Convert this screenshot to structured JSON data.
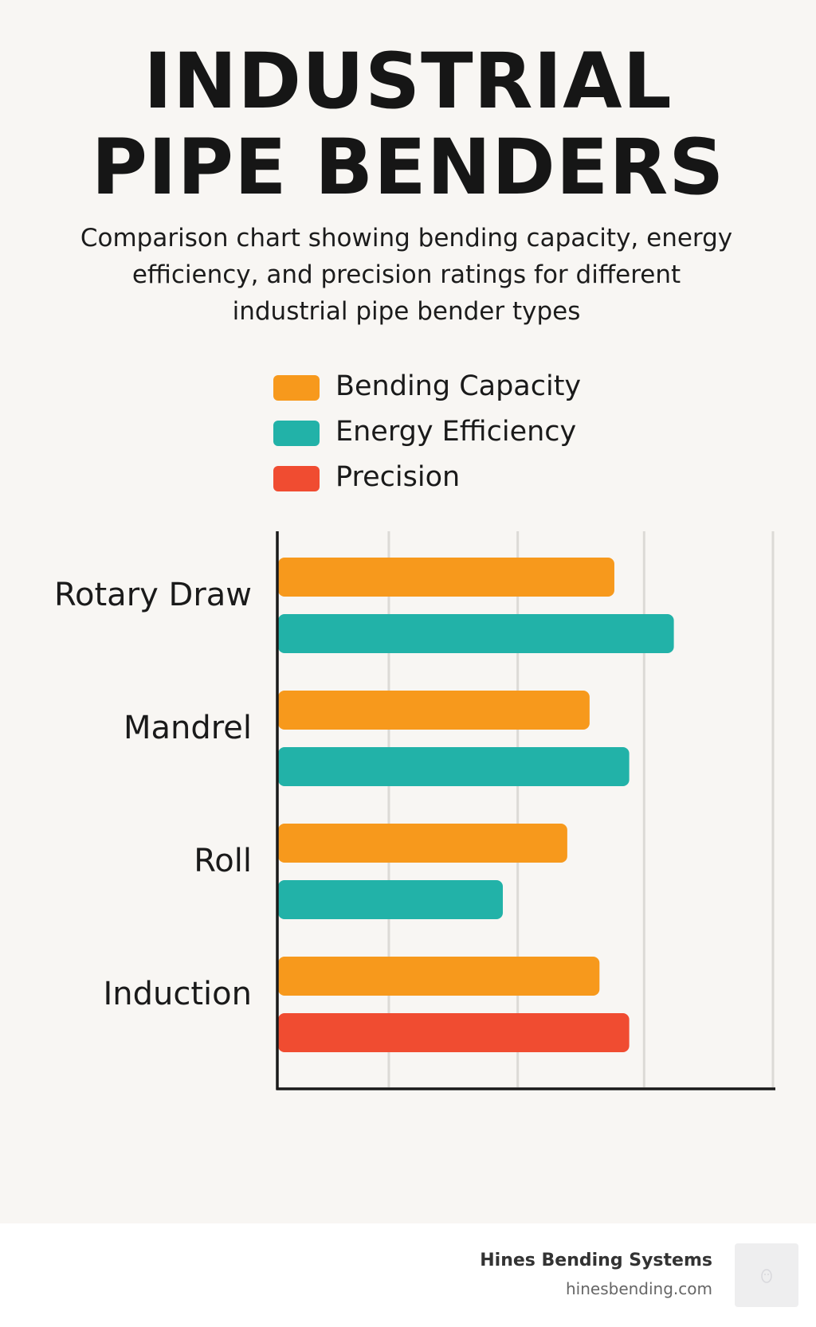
{
  "header": {
    "title_line1": "INDUSTRIAL",
    "title_line2": "PIPE BENDERS",
    "subtitle": "Comparison chart showing bending capacity, energy efficiency, and precision ratings for different industrial pipe bender types"
  },
  "legend": [
    {
      "label": "Bending Capacity",
      "color": "#f7991c"
    },
    {
      "label": "Energy Efficiency",
      "color": "#22b2a8"
    },
    {
      "label": "Precision",
      "color": "#f04c31"
    }
  ],
  "chart_data": {
    "type": "bar",
    "orientation": "horizontal",
    "title": "INDUSTRIAL PIPE BENDERS",
    "subtitle": "Comparison chart showing bending capacity, energy efficiency, and precision ratings for different industrial pipe bender types",
    "categories": [
      "Rotary Draw",
      "Mandrel",
      "Roll",
      "Induction"
    ],
    "series": [
      {
        "name": "Bending Capacity",
        "color": "#f7991c",
        "values": [
          68,
          63,
          58.5,
          65
        ]
      },
      {
        "name": "Energy Efficiency",
        "color": "#22b2a8",
        "values": [
          80,
          71,
          45.5,
          null
        ]
      },
      {
        "name": "Precision",
        "color": "#f04c31",
        "values": [
          null,
          null,
          null,
          71
        ]
      }
    ],
    "xlim": [
      0,
      100
    ],
    "grid": true,
    "xlabel": "",
    "ylabel": "",
    "legend_position": "top"
  },
  "footer": {
    "brand": "Hines Bending Systems",
    "url": "hinesbending.com",
    "logo_icon": "logo-placeholder-icon"
  }
}
